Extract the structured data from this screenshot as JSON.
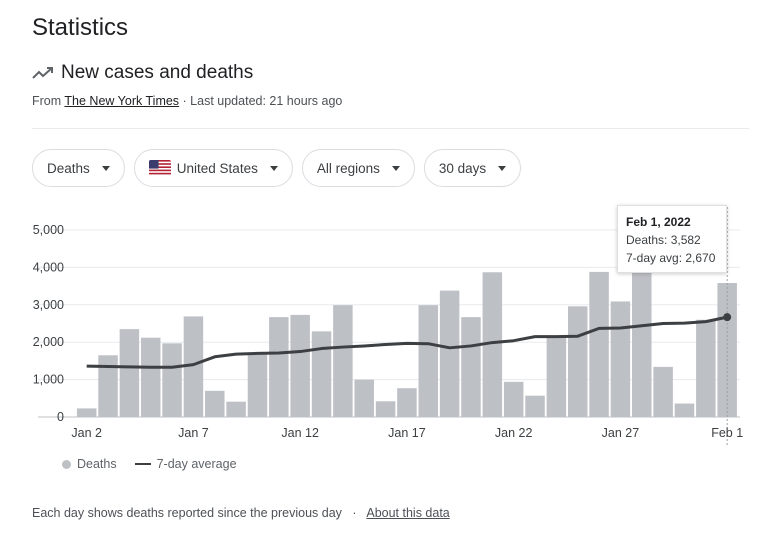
{
  "page": {
    "title": "Statistics",
    "subtitle": "New cases and deaths",
    "source_prefix": "From",
    "source_name": "The New York Times",
    "updated": "· Last updated: 21 hours ago"
  },
  "filters": [
    {
      "label": "Deaths"
    },
    {
      "label": "United States"
    },
    {
      "label": "All regions"
    },
    {
      "label": "30 days"
    }
  ],
  "tooltip": {
    "date": "Feb 1, 2022",
    "deaths": "Deaths: 3,582",
    "avg": "7-day avg: 2,670"
  },
  "legend": {
    "bars_label": "Deaths",
    "line_label": "7-day average"
  },
  "footer": {
    "note": "Each day shows deaths reported since the previous day",
    "separator": "·",
    "link": "About this data"
  },
  "colors": {
    "bar": "#bdc1c6",
    "line": "#3c4043",
    "grid": "#e8eaed"
  },
  "chart_data": {
    "type": "bar",
    "title": "New cases and deaths",
    "categories": [
      "Jan 2",
      "Jan 3",
      "Jan 4",
      "Jan 5",
      "Jan 6",
      "Jan 7",
      "Jan 8",
      "Jan 9",
      "Jan 10",
      "Jan 11",
      "Jan 12",
      "Jan 13",
      "Jan 14",
      "Jan 15",
      "Jan 16",
      "Jan 17",
      "Jan 18",
      "Jan 19",
      "Jan 20",
      "Jan 21",
      "Jan 22",
      "Jan 23",
      "Jan 24",
      "Jan 25",
      "Jan 26",
      "Jan 27",
      "Jan 28",
      "Jan 29",
      "Jan 30",
      "Jan 31",
      "Feb 1"
    ],
    "series": [
      {
        "name": "Deaths",
        "type": "bar",
        "values": [
          230,
          1650,
          2350,
          2120,
          1970,
          2690,
          700,
          410,
          1680,
          2670,
          2730,
          2290,
          2990,
          1000,
          420,
          770,
          2990,
          3380,
          2670,
          3870,
          940,
          570,
          2170,
          2960,
          3880,
          3090,
          3880,
          1340,
          360,
          2600,
          3582
        ]
      },
      {
        "name": "7-day average",
        "type": "line",
        "values": [
          1360,
          1350,
          1340,
          1330,
          1330,
          1400,
          1610,
          1680,
          1700,
          1710,
          1750,
          1830,
          1870,
          1900,
          1940,
          1970,
          1960,
          1850,
          1900,
          1990,
          2040,
          2150,
          2150,
          2160,
          2370,
          2380,
          2440,
          2500,
          2510,
          2550,
          2670
        ]
      }
    ],
    "xticks": [
      "Jan 2",
      "Jan 7",
      "Jan 12",
      "Jan 17",
      "Jan 22",
      "Jan 27",
      "Feb 1"
    ],
    "yticks": [
      "0",
      "1,000",
      "2,000",
      "3,000",
      "4,000",
      "5,000"
    ],
    "ylim": [
      0,
      5000
    ],
    "xlabel": "",
    "ylabel": "",
    "highlight": "Feb 1"
  }
}
